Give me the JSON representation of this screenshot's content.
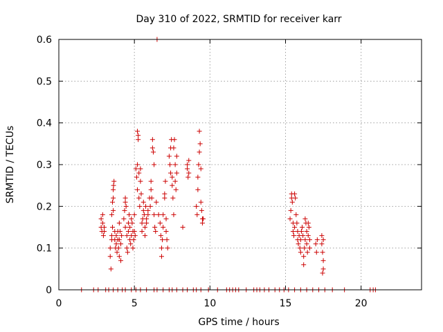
{
  "chart_data": {
    "type": "scatter",
    "title": "Day 310 of 2022, SRMTID for receiver karr",
    "xlabel": "GPS time / hours",
    "ylabel": "SRMTID / TECUs",
    "xlim": [
      0,
      24
    ],
    "ylim": [
      0,
      0.6
    ],
    "xticks": [
      0,
      5,
      10,
      15,
      20
    ],
    "xtick_labels": [
      "0",
      "5",
      "10",
      "15",
      "20"
    ],
    "yticks": [
      0,
      0.1,
      0.2,
      0.3,
      0.4,
      0.5,
      0.6
    ],
    "ytick_labels": [
      "0",
      "0.1",
      "0.2",
      "0.3",
      "0.4",
      "0.5",
      "0.6"
    ],
    "grid": true,
    "marker": "plus",
    "color": "#cc0000",
    "series": [
      {
        "name": "karr",
        "points": [
          [
            2.8,
            0.17
          ],
          [
            2.8,
            0.15
          ],
          [
            2.85,
            0.14
          ],
          [
            2.9,
            0.16
          ],
          [
            2.9,
            0.18
          ],
          [
            2.95,
            0.13
          ],
          [
            3.0,
            0.15
          ],
          [
            3.0,
            0.14
          ],
          [
            3.4,
            0.1
          ],
          [
            3.4,
            0.08
          ],
          [
            3.45,
            0.05
          ],
          [
            3.5,
            0.13
          ],
          [
            3.5,
            0.12
          ],
          [
            3.55,
            0.15
          ],
          [
            3.5,
            0.18
          ],
          [
            3.55,
            0.21
          ],
          [
            3.6,
            0.22
          ],
          [
            3.6,
            0.24
          ],
          [
            3.62,
            0.25
          ],
          [
            3.65,
            0.26
          ],
          [
            3.6,
            0.19
          ],
          [
            3.7,
            0.14
          ],
          [
            3.7,
            0.12
          ],
          [
            3.75,
            0.1
          ],
          [
            3.8,
            0.13
          ],
          [
            3.8,
            0.11
          ],
          [
            3.85,
            0.09
          ],
          [
            3.9,
            0.14
          ],
          [
            3.9,
            0.12
          ],
          [
            3.95,
            0.1
          ],
          [
            4.0,
            0.08
          ],
          [
            4.0,
            0.12
          ],
          [
            4.05,
            0.14
          ],
          [
            4.0,
            0.16
          ],
          [
            4.1,
            0.11
          ],
          [
            4.1,
            0.07
          ],
          [
            4.15,
            0.13
          ],
          [
            4.3,
            0.17
          ],
          [
            4.35,
            0.19
          ],
          [
            4.4,
            0.21
          ],
          [
            4.4,
            0.22
          ],
          [
            4.45,
            0.2
          ],
          [
            4.4,
            0.15
          ],
          [
            4.5,
            0.13
          ],
          [
            4.5,
            0.1
          ],
          [
            4.55,
            0.09
          ],
          [
            4.6,
            0.14
          ],
          [
            4.6,
            0.16
          ],
          [
            4.65,
            0.18
          ],
          [
            4.7,
            0.15
          ],
          [
            4.7,
            0.12
          ],
          [
            4.75,
            0.11
          ],
          [
            4.8,
            0.13
          ],
          [
            4.8,
            0.17
          ],
          [
            4.85,
            0.16
          ],
          [
            4.9,
            0.14
          ],
          [
            4.9,
            0.1
          ],
          [
            4.95,
            0.12
          ],
          [
            5.0,
            0.14
          ],
          [
            5.0,
            0.18
          ],
          [
            5.05,
            0.13
          ],
          [
            5.1,
            0.29
          ],
          [
            5.15,
            0.27
          ],
          [
            5.2,
            0.24
          ],
          [
            5.2,
            0.3
          ],
          [
            5.2,
            0.38
          ],
          [
            5.25,
            0.36
          ],
          [
            5.25,
            0.37
          ],
          [
            5.3,
            0.28
          ],
          [
            5.3,
            0.22
          ],
          [
            5.35,
            0.2
          ],
          [
            5.4,
            0.26
          ],
          [
            5.4,
            0.29
          ],
          [
            5.45,
            0.23
          ],
          [
            5.5,
            0.16
          ],
          [
            5.5,
            0.14
          ],
          [
            5.55,
            0.17
          ],
          [
            5.6,
            0.19
          ],
          [
            5.6,
            0.21
          ],
          [
            5.65,
            0.18
          ],
          [
            5.7,
            0.15
          ],
          [
            5.7,
            0.13
          ],
          [
            5.75,
            0.2
          ],
          [
            5.8,
            0.17
          ],
          [
            5.8,
            0.16
          ],
          [
            5.9,
            0.19
          ],
          [
            5.9,
            0.18
          ],
          [
            6.0,
            0.22
          ],
          [
            6.05,
            0.2
          ],
          [
            6.1,
            0.24
          ],
          [
            6.1,
            0.26
          ],
          [
            6.15,
            0.22
          ],
          [
            6.2,
            0.36
          ],
          [
            6.2,
            0.34
          ],
          [
            6.25,
            0.33
          ],
          [
            6.3,
            0.3
          ],
          [
            6.3,
            0.18
          ],
          [
            6.35,
            0.15
          ],
          [
            6.4,
            0.14
          ],
          [
            6.45,
            0.21
          ],
          [
            6.5,
            0.6
          ],
          [
            6.6,
            0.18
          ],
          [
            6.7,
            0.16
          ],
          [
            6.75,
            0.13
          ],
          [
            6.8,
            0.1
          ],
          [
            6.8,
            0.08
          ],
          [
            6.85,
            0.12
          ],
          [
            6.9,
            0.15
          ],
          [
            6.9,
            0.18
          ],
          [
            7.0,
            0.23
          ],
          [
            7.0,
            0.22
          ],
          [
            7.05,
            0.26
          ],
          [
            7.1,
            0.17
          ],
          [
            7.1,
            0.14
          ],
          [
            7.15,
            0.12
          ],
          [
            7.2,
            0.1
          ],
          [
            7.3,
            0.32
          ],
          [
            7.35,
            0.3
          ],
          [
            7.4,
            0.28
          ],
          [
            7.4,
            0.34
          ],
          [
            7.45,
            0.36
          ],
          [
            7.5,
            0.27
          ],
          [
            7.5,
            0.25
          ],
          [
            7.55,
            0.22
          ],
          [
            7.6,
            0.18
          ],
          [
            7.6,
            0.34
          ],
          [
            7.65,
            0.36
          ],
          [
            7.7,
            0.3
          ],
          [
            7.7,
            0.26
          ],
          [
            7.75,
            0.24
          ],
          [
            7.8,
            0.28
          ],
          [
            7.8,
            0.32
          ],
          [
            8.2,
            0.15
          ],
          [
            8.5,
            0.29
          ],
          [
            8.5,
            0.3
          ],
          [
            8.55,
            0.27
          ],
          [
            8.6,
            0.31
          ],
          [
            8.6,
            0.28
          ],
          [
            9.1,
            0.2
          ],
          [
            9.15,
            0.18
          ],
          [
            9.2,
            0.24
          ],
          [
            9.2,
            0.27
          ],
          [
            9.25,
            0.3
          ],
          [
            9.3,
            0.33
          ],
          [
            9.3,
            0.38
          ],
          [
            9.35,
            0.35
          ],
          [
            9.4,
            0.29
          ],
          [
            9.4,
            0.21
          ],
          [
            9.45,
            0.19
          ],
          [
            9.5,
            0.17
          ],
          [
            9.5,
            0.16
          ],
          [
            9.55,
            0.17
          ],
          [
            15.3,
            0.17
          ],
          [
            15.35,
            0.19
          ],
          [
            15.4,
            0.22
          ],
          [
            15.4,
            0.23
          ],
          [
            15.45,
            0.21
          ],
          [
            15.5,
            0.16
          ],
          [
            15.5,
            0.14
          ],
          [
            15.55,
            0.13
          ],
          [
            15.6,
            0.15
          ],
          [
            15.6,
            0.23
          ],
          [
            15.65,
            0.22
          ],
          [
            15.7,
            0.18
          ],
          [
            15.75,
            0.16
          ],
          [
            15.8,
            0.14
          ],
          [
            15.8,
            0.12
          ],
          [
            15.85,
            0.11
          ],
          [
            15.9,
            0.13
          ],
          [
            15.95,
            0.1
          ],
          [
            16.0,
            0.09
          ],
          [
            16.0,
            0.12
          ],
          [
            16.05,
            0.14
          ],
          [
            16.1,
            0.15
          ],
          [
            16.15,
            0.13
          ],
          [
            16.2,
            0.08
          ],
          [
            16.2,
            0.06
          ],
          [
            16.25,
            0.1
          ],
          [
            16.3,
            0.12
          ],
          [
            16.3,
            0.17
          ],
          [
            16.35,
            0.16
          ],
          [
            16.4,
            0.14
          ],
          [
            16.4,
            0.11
          ],
          [
            16.45,
            0.09
          ],
          [
            16.5,
            0.13
          ],
          [
            16.5,
            0.16
          ],
          [
            16.55,
            0.15
          ],
          [
            16.6,
            0.12
          ],
          [
            16.6,
            0.1
          ],
          [
            17.0,
            0.11
          ],
          [
            17.05,
            0.09
          ],
          [
            17.1,
            0.12
          ],
          [
            17.4,
            0.13
          ],
          [
            17.4,
            0.11
          ],
          [
            17.45,
            0.09
          ],
          [
            17.5,
            0.07
          ],
          [
            17.5,
            0.05
          ],
          [
            17.45,
            0.04
          ],
          [
            17.5,
            0.12
          ],
          [
            1.5,
            0
          ],
          [
            2.3,
            0
          ],
          [
            2.6,
            0
          ],
          [
            3.1,
            0
          ],
          [
            3.3,
            0
          ],
          [
            3.6,
            0
          ],
          [
            3.9,
            0
          ],
          [
            4.2,
            0
          ],
          [
            4.4,
            0
          ],
          [
            4.8,
            0
          ],
          [
            5.1,
            0
          ],
          [
            5.4,
            0
          ],
          [
            5.8,
            0
          ],
          [
            6.3,
            0
          ],
          [
            6.5,
            0
          ],
          [
            6.9,
            0
          ],
          [
            7.3,
            0
          ],
          [
            7.5,
            0
          ],
          [
            7.8,
            0
          ],
          [
            8.2,
            0
          ],
          [
            8.5,
            0
          ],
          [
            8.9,
            0
          ],
          [
            9.1,
            0
          ],
          [
            9.4,
            0
          ],
          [
            9.9,
            0
          ],
          [
            10.5,
            0
          ],
          [
            11.1,
            0
          ],
          [
            11.3,
            0
          ],
          [
            11.5,
            0
          ],
          [
            11.7,
            0
          ],
          [
            11.9,
            0
          ],
          [
            12.4,
            0
          ],
          [
            12.9,
            0
          ],
          [
            13.1,
            0
          ],
          [
            13.3,
            0
          ],
          [
            13.6,
            0
          ],
          [
            13.9,
            0
          ],
          [
            14.3,
            0
          ],
          [
            14.6,
            0
          ],
          [
            14.9,
            0
          ],
          [
            15.2,
            0
          ],
          [
            15.6,
            0
          ],
          [
            16.0,
            0
          ],
          [
            16.4,
            0
          ],
          [
            16.8,
            0
          ],
          [
            17.2,
            0
          ],
          [
            17.6,
            0
          ],
          [
            18.1,
            0
          ],
          [
            18.9,
            0
          ],
          [
            20.6,
            0
          ],
          [
            20.8,
            0
          ],
          [
            20.95,
            0
          ]
        ]
      }
    ]
  }
}
